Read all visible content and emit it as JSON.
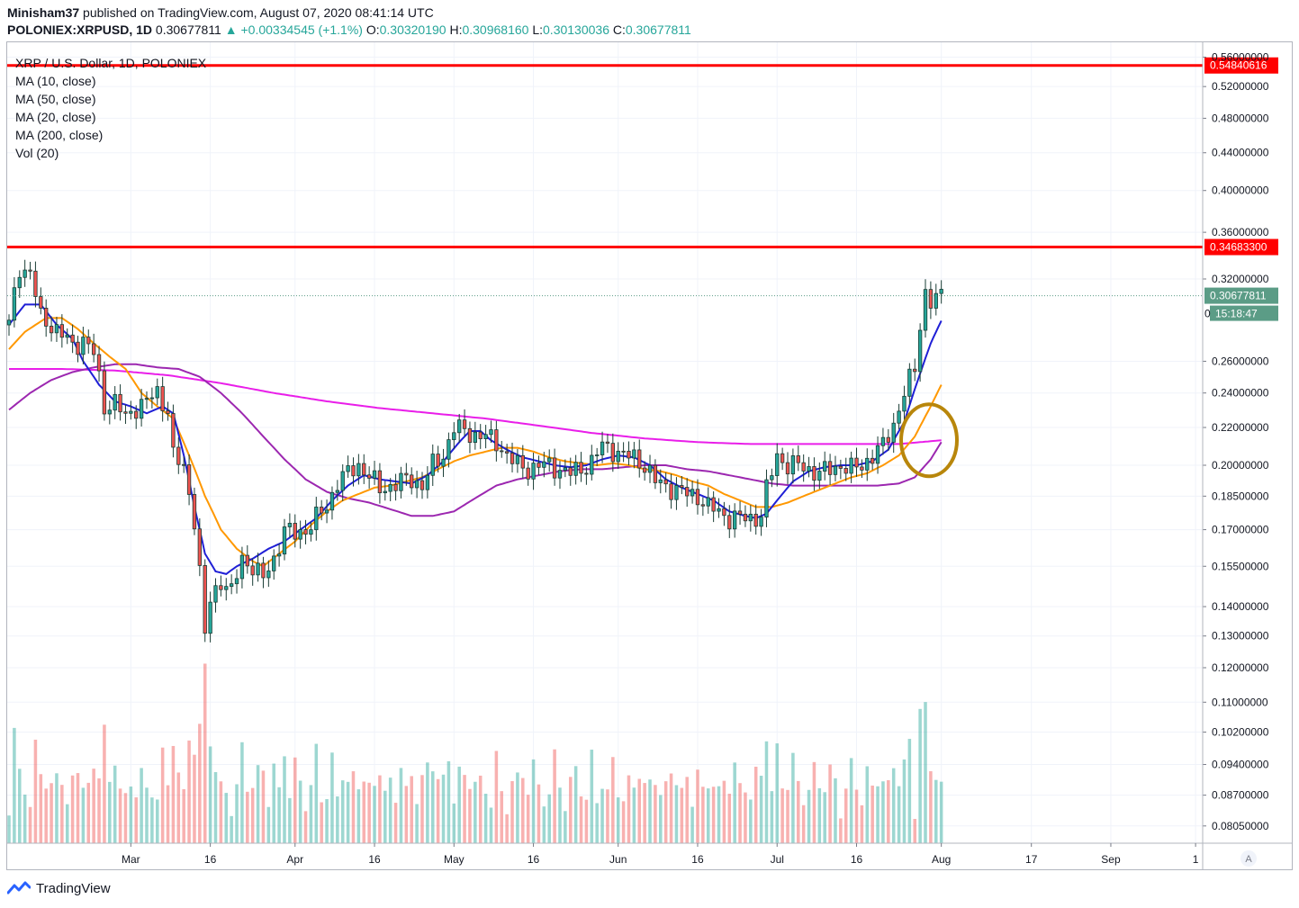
{
  "header": {
    "author": "Minisham37",
    "published_text": "published on TradingView.com, August 07, 2020 08:41:14 UTC",
    "symbol": "POLONIEX:XRPUSD, 1D",
    "last": "0.30677811",
    "change": "▲ +0.00334545 (+1.1%)",
    "o_label": "O:",
    "o": "0.30320190",
    "h_label": "H:",
    "h": "0.30968160",
    "l_label": "L:",
    "l": "0.30130036",
    "c_label": "C:",
    "c": "0.30677811"
  },
  "legend": {
    "title": "XRP / U.S. Dollar, 1D, POLONIEX",
    "items": [
      "MA (10, close)",
      "MA (50, close)",
      "MA (20, close)",
      "MA (200, close)",
      "Vol (20)"
    ]
  },
  "footer": {
    "brand": "TradingView"
  },
  "colors": {
    "up": "#26a69a",
    "down": "#ef5350",
    "candle": "#1a3d35",
    "ma10": "#1f1fd6",
    "ma20": "#ff9800",
    "ma50": "#9c27b0",
    "ma200": "#e91ee9",
    "resistance": "#ff0000",
    "price_label": "#5b9c86",
    "circle": "#b8860b"
  },
  "chart_data": {
    "type": "candlestick",
    "title": "XRP / U.S. Dollar, 1D, POLONIEX",
    "y_scale": "log",
    "yticks": [
      "0.56000000",
      "0.52000000",
      "0.48000000",
      "0.44000000",
      "0.40000000",
      "0.36000000",
      "0.32000000",
      "0.26000000",
      "0.24000000",
      "0.22000000",
      "0.20000000",
      "0.18500000",
      "0.17000000",
      "0.15500000",
      "0.14000000",
      "0.13000000",
      "0.12000000",
      "0.11000000",
      "0.10200000",
      "0.09400000",
      "0.08700000",
      "0.08050000"
    ],
    "ytick_values": [
      0.56,
      0.52,
      0.48,
      0.44,
      0.4,
      0.36,
      0.32,
      0.26,
      0.24,
      0.22,
      0.2,
      0.185,
      0.17,
      0.155,
      0.14,
      0.13,
      0.12,
      0.11,
      0.102,
      0.094,
      0.087,
      0.0805
    ],
    "ylim": [
      0.0775,
      0.57
    ],
    "xticks": [
      "Mar",
      "16",
      "Apr",
      "16",
      "May",
      "16",
      "Jun",
      "16",
      "Jul",
      "16",
      "Aug",
      "17",
      "Sep",
      "1"
    ],
    "xtick_day_index": [
      23,
      38,
      54,
      69,
      84,
      99,
      115,
      130,
      145,
      160,
      176,
      193,
      208,
      224
    ],
    "total_days": 225,
    "horizontal_lines": [
      {
        "label": "0.54840616",
        "value": 0.54840616
      },
      {
        "label": "0.34683300",
        "value": 0.346833
      }
    ],
    "last_price_label": "0.30677811",
    "last_price": 0.30677811,
    "countdown_label": "15:18:47",
    "countdown_prefix": "0",
    "close_anchors": [
      [
        0,
        0.285
      ],
      [
        2,
        0.33
      ],
      [
        4,
        0.325
      ],
      [
        6,
        0.29
      ],
      [
        8,
        0.285
      ],
      [
        10,
        0.278
      ],
      [
        12,
        0.27
      ],
      [
        14,
        0.275
      ],
      [
        16,
        0.265
      ],
      [
        18,
        0.232
      ],
      [
        20,
        0.235
      ],
      [
        22,
        0.225
      ],
      [
        24,
        0.232
      ],
      [
        26,
        0.235
      ],
      [
        28,
        0.24
      ],
      [
        30,
        0.23
      ],
      [
        31,
        0.205
      ],
      [
        33,
        0.198
      ],
      [
        35,
        0.175
      ],
      [
        37,
        0.13
      ],
      [
        38,
        0.142
      ],
      [
        40,
        0.15
      ],
      [
        42,
        0.145
      ],
      [
        44,
        0.158
      ],
      [
        46,
        0.155
      ],
      [
        48,
        0.15
      ],
      [
        50,
        0.158
      ],
      [
        52,
        0.17
      ],
      [
        54,
        0.168
      ],
      [
        56,
        0.17
      ],
      [
        58,
        0.175
      ],
      [
        60,
        0.18
      ],
      [
        62,
        0.192
      ],
      [
        64,
        0.196
      ],
      [
        66,
        0.2
      ],
      [
        68,
        0.195
      ],
      [
        70,
        0.188
      ],
      [
        72,
        0.19
      ],
      [
        74,
        0.192
      ],
      [
        76,
        0.193
      ],
      [
        78,
        0.19
      ],
      [
        80,
        0.2
      ],
      [
        82,
        0.205
      ],
      [
        84,
        0.22
      ],
      [
        86,
        0.218
      ],
      [
        88,
        0.216
      ],
      [
        90,
        0.215
      ],
      [
        92,
        0.212
      ],
      [
        94,
        0.205
      ],
      [
        96,
        0.2
      ],
      [
        98,
        0.198
      ],
      [
        100,
        0.2
      ],
      [
        102,
        0.2
      ],
      [
        104,
        0.198
      ],
      [
        106,
        0.196
      ],
      [
        108,
        0.198
      ],
      [
        110,
        0.202
      ],
      [
        112,
        0.21
      ],
      [
        114,
        0.208
      ],
      [
        116,
        0.205
      ],
      [
        118,
        0.204
      ],
      [
        120,
        0.2
      ],
      [
        122,
        0.192
      ],
      [
        124,
        0.19
      ],
      [
        126,
        0.188
      ],
      [
        128,
        0.186
      ],
      [
        130,
        0.185
      ],
      [
        132,
        0.18
      ],
      [
        134,
        0.178
      ],
      [
        136,
        0.175
      ],
      [
        138,
        0.175
      ],
      [
        140,
        0.175
      ],
      [
        142,
        0.176
      ],
      [
        143,
        0.188
      ],
      [
        145,
        0.205
      ],
      [
        147,
        0.2
      ],
      [
        149,
        0.2
      ],
      [
        151,
        0.198
      ],
      [
        153,
        0.196
      ],
      [
        155,
        0.198
      ],
      [
        157,
        0.2
      ],
      [
        159,
        0.198
      ],
      [
        161,
        0.2
      ],
      [
        163,
        0.205
      ],
      [
        165,
        0.21
      ],
      [
        167,
        0.222
      ],
      [
        169,
        0.24
      ],
      [
        171,
        0.255
      ],
      [
        172,
        0.285
      ],
      [
        173,
        0.31
      ],
      [
        174,
        0.302
      ],
      [
        175,
        0.303
      ],
      [
        176,
        0.307
      ]
    ],
    "ma10_anchors": [
      [
        0,
        0.285
      ],
      [
        3,
        0.3
      ],
      [
        6,
        0.3
      ],
      [
        9,
        0.285
      ],
      [
        12,
        0.275
      ],
      [
        14,
        0.26
      ],
      [
        17,
        0.245
      ],
      [
        20,
        0.235
      ],
      [
        23,
        0.232
      ],
      [
        26,
        0.228
      ],
      [
        29,
        0.232
      ],
      [
        31,
        0.228
      ],
      [
        33,
        0.205
      ],
      [
        35,
        0.18
      ],
      [
        37,
        0.16
      ],
      [
        39,
        0.153
      ],
      [
        41,
        0.152
      ],
      [
        43,
        0.155
      ],
      [
        46,
        0.158
      ],
      [
        49,
        0.162
      ],
      [
        52,
        0.165
      ],
      [
        55,
        0.17
      ],
      [
        58,
        0.175
      ],
      [
        61,
        0.183
      ],
      [
        64,
        0.19
      ],
      [
        67,
        0.195
      ],
      [
        70,
        0.193
      ],
      [
        73,
        0.192
      ],
      [
        76,
        0.191
      ],
      [
        79,
        0.195
      ],
      [
        82,
        0.202
      ],
      [
        85,
        0.212
      ],
      [
        87,
        0.218
      ],
      [
        89,
        0.218
      ],
      [
        91,
        0.213
      ],
      [
        94,
        0.208
      ],
      [
        97,
        0.204
      ],
      [
        100,
        0.202
      ],
      [
        103,
        0.2
      ],
      [
        106,
        0.199
      ],
      [
        109,
        0.2
      ],
      [
        112,
        0.203
      ],
      [
        115,
        0.205
      ],
      [
        118,
        0.204
      ],
      [
        121,
        0.2
      ],
      [
        124,
        0.193
      ],
      [
        127,
        0.189
      ],
      [
        130,
        0.186
      ],
      [
        133,
        0.183
      ],
      [
        136,
        0.178
      ],
      [
        139,
        0.176
      ],
      [
        141,
        0.175
      ],
      [
        143,
        0.177
      ],
      [
        145,
        0.183
      ],
      [
        148,
        0.192
      ],
      [
        151,
        0.197
      ],
      [
        154,
        0.199
      ],
      [
        157,
        0.2
      ],
      [
        160,
        0.2
      ],
      [
        163,
        0.202
      ],
      [
        166,
        0.208
      ],
      [
        169,
        0.223
      ],
      [
        172,
        0.252
      ],
      [
        174,
        0.272
      ],
      [
        176,
        0.288
      ]
    ],
    "ma20_anchors": [
      [
        0,
        0.268
      ],
      [
        3,
        0.28
      ],
      [
        7,
        0.29
      ],
      [
        10,
        0.29
      ],
      [
        13,
        0.282
      ],
      [
        16,
        0.272
      ],
      [
        19,
        0.263
      ],
      [
        22,
        0.255
      ],
      [
        25,
        0.24
      ],
      [
        28,
        0.232
      ],
      [
        31,
        0.225
      ],
      [
        34,
        0.205
      ],
      [
        37,
        0.185
      ],
      [
        40,
        0.17
      ],
      [
        43,
        0.162
      ],
      [
        46,
        0.157
      ],
      [
        48,
        0.155
      ],
      [
        51,
        0.16
      ],
      [
        54,
        0.165
      ],
      [
        57,
        0.172
      ],
      [
        60,
        0.178
      ],
      [
        63,
        0.183
      ],
      [
        66,
        0.186
      ],
      [
        69,
        0.189
      ],
      [
        72,
        0.19
      ],
      [
        75,
        0.192
      ],
      [
        78,
        0.194
      ],
      [
        81,
        0.198
      ],
      [
        84,
        0.202
      ],
      [
        87,
        0.205
      ],
      [
        90,
        0.207
      ],
      [
        93,
        0.209
      ],
      [
        96,
        0.209
      ],
      [
        99,
        0.207
      ],
      [
        102,
        0.204
      ],
      [
        105,
        0.202
      ],
      [
        108,
        0.201
      ],
      [
        111,
        0.2
      ],
      [
        114,
        0.201
      ],
      [
        117,
        0.2
      ],
      [
        120,
        0.198
      ],
      [
        123,
        0.197
      ],
      [
        126,
        0.195
      ],
      [
        129,
        0.192
      ],
      [
        132,
        0.19
      ],
      [
        135,
        0.186
      ],
      [
        138,
        0.183
      ],
      [
        141,
        0.18
      ],
      [
        144,
        0.18
      ],
      [
        147,
        0.182
      ],
      [
        150,
        0.185
      ],
      [
        153,
        0.188
      ],
      [
        156,
        0.191
      ],
      [
        159,
        0.194
      ],
      [
        162,
        0.196
      ],
      [
        165,
        0.2
      ],
      [
        168,
        0.205
      ],
      [
        171,
        0.215
      ],
      [
        174,
        0.232
      ],
      [
        176,
        0.245
      ]
    ],
    "ma50_anchors": [
      [
        0,
        0.23
      ],
      [
        4,
        0.24
      ],
      [
        8,
        0.248
      ],
      [
        12,
        0.253
      ],
      [
        16,
        0.256
      ],
      [
        20,
        0.258
      ],
      [
        24,
        0.258
      ],
      [
        28,
        0.256
      ],
      [
        32,
        0.255
      ],
      [
        36,
        0.25
      ],
      [
        40,
        0.24
      ],
      [
        44,
        0.228
      ],
      [
        48,
        0.215
      ],
      [
        52,
        0.203
      ],
      [
        56,
        0.193
      ],
      [
        60,
        0.187
      ],
      [
        64,
        0.184
      ],
      [
        68,
        0.182
      ],
      [
        72,
        0.179
      ],
      [
        76,
        0.176
      ],
      [
        80,
        0.176
      ],
      [
        84,
        0.178
      ],
      [
        88,
        0.184
      ],
      [
        92,
        0.19
      ],
      [
        96,
        0.193
      ],
      [
        100,
        0.195
      ],
      [
        104,
        0.197
      ],
      [
        108,
        0.198
      ],
      [
        112,
        0.198
      ],
      [
        116,
        0.199
      ],
      [
        120,
        0.2
      ],
      [
        124,
        0.2
      ],
      [
        128,
        0.198
      ],
      [
        132,
        0.197
      ],
      [
        136,
        0.195
      ],
      [
        140,
        0.193
      ],
      [
        144,
        0.191
      ],
      [
        148,
        0.19
      ],
      [
        152,
        0.19
      ],
      [
        156,
        0.19
      ],
      [
        160,
        0.19
      ],
      [
        164,
        0.19
      ],
      [
        168,
        0.191
      ],
      [
        171,
        0.194
      ],
      [
        174,
        0.203
      ],
      [
        176,
        0.212
      ]
    ],
    "ma200_anchors": [
      [
        0,
        0.255
      ],
      [
        10,
        0.255
      ],
      [
        20,
        0.254
      ],
      [
        30,
        0.251
      ],
      [
        40,
        0.246
      ],
      [
        50,
        0.24
      ],
      [
        60,
        0.235
      ],
      [
        70,
        0.231
      ],
      [
        80,
        0.228
      ],
      [
        90,
        0.225
      ],
      [
        100,
        0.221
      ],
      [
        110,
        0.217
      ],
      [
        120,
        0.214
      ],
      [
        130,
        0.212
      ],
      [
        140,
        0.211
      ],
      [
        150,
        0.211
      ],
      [
        160,
        0.211
      ],
      [
        168,
        0.211
      ],
      [
        172,
        0.212
      ],
      [
        176,
        0.213
      ]
    ],
    "volume_note": "Vol (20) histogram along bottom of price pane",
    "annotation": {
      "type": "ellipse",
      "around_day": 173,
      "around_price": 0.213
    }
  }
}
